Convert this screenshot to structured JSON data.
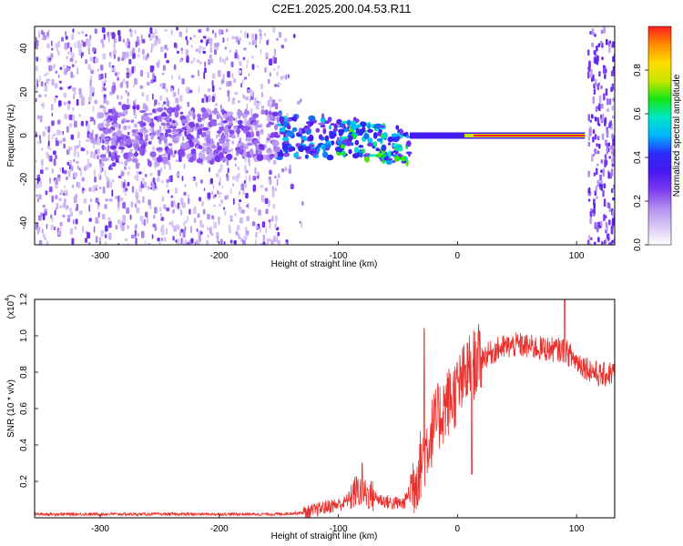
{
  "title": "C2E1.2025.200.04.53.R11",
  "chart_data": [
    {
      "type": "heatmap",
      "xlabel": "Height of straight line (km)",
      "ylabel": "Frequency (Hz)",
      "xlim": [
        -355,
        132
      ],
      "ylim": [
        -50,
        50
      ],
      "x_ticks": [
        -300,
        -200,
        -100,
        0,
        100
      ],
      "y_ticks": [
        -40,
        -20,
        0,
        20,
        40
      ],
      "colorbar": {
        "label": "Normalized spectral amplitude",
        "range": [
          0,
          1
        ],
        "ticks": [
          "0.0",
          "0.2",
          "0.4",
          "0.6",
          "0.8"
        ],
        "tick_values": [
          0.0,
          0.2,
          0.4,
          0.6,
          0.8
        ],
        "colors": [
          "#ffffff",
          "#d8c8f4",
          "#b48ff0",
          "#7d3cf0",
          "#4a18f0",
          "#2a2af8",
          "#00b4ff",
          "#00e8c8",
          "#14e614",
          "#c8e600",
          "#ffdc00",
          "#ff8c00",
          "#ff1e1e"
        ]
      },
      "features": {
        "noisy_region_x": [
          -355,
          -150
        ],
        "strong_line_x": [
          -150,
          107
        ],
        "strong_line_freq": 0,
        "right_noise_x": [
          107,
          132
        ]
      }
    },
    {
      "type": "line",
      "xlabel": "Height of straight line (km)",
      "ylabel": "SNR (10 * v/v)",
      "y_multiplier": "(x10",
      "y_multiplier_exp": "4",
      "y_multiplier_close": ")",
      "xlim": [
        -355,
        132
      ],
      "ylim": [
        0,
        1.2
      ],
      "x_ticks": [
        -300,
        -200,
        -100,
        0,
        100
      ],
      "y_ticks": [
        0.2,
        0.4,
        0.6,
        0.8,
        1.0,
        1.2
      ],
      "color": "#e8302c",
      "profile": {
        "x": [
          -355,
          -200,
          -150,
          -125,
          -110,
          -95,
          -85,
          -75,
          -65,
          -55,
          -45,
          -35,
          -28,
          -20,
          -10,
          0,
          10,
          20,
          35,
          50,
          70,
          90,
          100,
          110,
          120,
          132
        ],
        "y": [
          0.02,
          0.02,
          0.02,
          0.03,
          0.06,
          0.08,
          0.15,
          0.13,
          0.1,
          0.08,
          0.08,
          0.22,
          0.35,
          0.5,
          0.62,
          0.7,
          0.82,
          0.88,
          0.93,
          0.95,
          0.93,
          0.92,
          0.86,
          0.82,
          0.78,
          0.8
        ]
      },
      "spikes": [
        {
          "x": -28,
          "y": 1.04
        },
        {
          "x": -80,
          "y": 0.3
        },
        {
          "x": 90,
          "y": 1.2
        },
        {
          "x": 12,
          "y": 0.24
        }
      ]
    }
  ]
}
